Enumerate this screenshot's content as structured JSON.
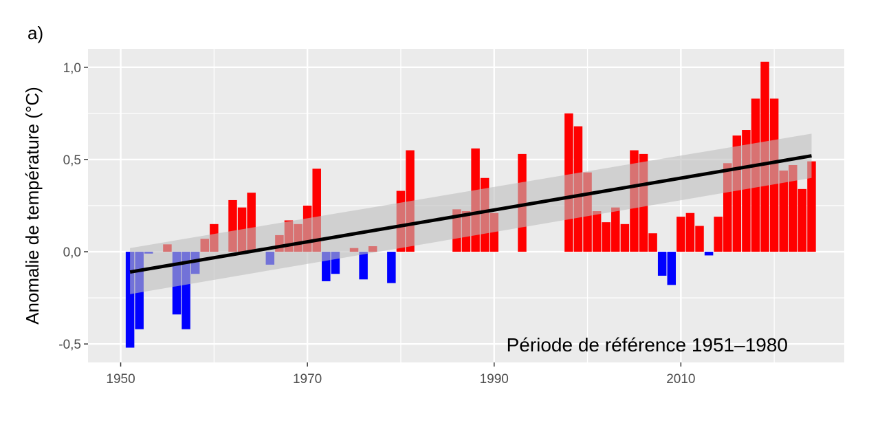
{
  "panel_tag": "a)",
  "chart_data": {
    "type": "bar",
    "title": "",
    "xlabel": "",
    "ylabel": "Anomalie de température (°C)",
    "annotation": "Période de référence 1951–1980",
    "xlim": [
      1946.5,
      2027.5
    ],
    "ylim": [
      -0.6,
      1.1
    ],
    "x_ticks": [
      1950,
      1970,
      1990,
      2010
    ],
    "x_tick_labels": [
      "1950",
      "1970",
      "1990",
      "2010"
    ],
    "y_ticks": [
      -0.5,
      0.0,
      0.5,
      1.0
    ],
    "y_tick_labels": [
      "-0,5",
      "0,0",
      "0,5",
      "1,0"
    ],
    "grid": true,
    "colors": {
      "positive": "#ff0000",
      "negative": "#0000ff",
      "trend": "#000000",
      "band": "#bebebe",
      "panel": "#ebebeb",
      "grid": "#ffffff"
    },
    "x": [
      1951,
      1952,
      1953,
      1954,
      1955,
      1956,
      1957,
      1958,
      1959,
      1960,
      1961,
      1962,
      1963,
      1964,
      1965,
      1966,
      1967,
      1968,
      1969,
      1970,
      1971,
      1972,
      1973,
      1974,
      1975,
      1976,
      1977,
      1978,
      1979,
      1980,
      1981,
      1982,
      1983,
      1984,
      1985,
      1986,
      1987,
      1988,
      1989,
      1990,
      1991,
      1992,
      1993,
      1994,
      1995,
      1996,
      1997,
      1998,
      1999,
      2000,
      2001,
      2002,
      2003,
      2004,
      2005,
      2006,
      2007,
      2008,
      2009,
      2010,
      2011,
      2012,
      2013,
      2014,
      2015,
      2016,
      2017,
      2018,
      2019,
      2020,
      2021,
      2022,
      2023,
      2024
    ],
    "values": [
      -0.52,
      -0.42,
      -0.01,
      0.0,
      0.04,
      -0.34,
      -0.42,
      -0.12,
      0.07,
      0.15,
      0.0,
      0.28,
      0.24,
      0.32,
      0.0,
      -0.07,
      0.09,
      0.17,
      0.15,
      0.25,
      0.45,
      -0.16,
      -0.12,
      0.0,
      0.02,
      -0.15,
      0.03,
      0.0,
      -0.17,
      0.33,
      0.55,
      0.0,
      0.0,
      0.0,
      0.0,
      0.23,
      0.22,
      0.56,
      0.4,
      0.21,
      0.0,
      0.0,
      0.53,
      0.0,
      0.0,
      0.0,
      0.0,
      0.75,
      0.68,
      0.43,
      0.22,
      0.16,
      0.24,
      0.15,
      0.55,
      0.53,
      0.1,
      -0.13,
      -0.18,
      0.19,
      0.21,
      0.14,
      -0.02,
      0.19,
      0.48,
      0.63,
      0.66,
      0.83,
      1.03,
      0.83,
      0.44,
      0.47,
      0.34,
      0.49
    ],
    "trend": {
      "x": [
        1951,
        2024
      ],
      "y": [
        -0.11,
        0.52
      ]
    },
    "confidence_band": {
      "x": [
        1951,
        2024
      ],
      "lower": [
        -0.23,
        0.4
      ],
      "upper": [
        0.02,
        0.64
      ]
    }
  }
}
